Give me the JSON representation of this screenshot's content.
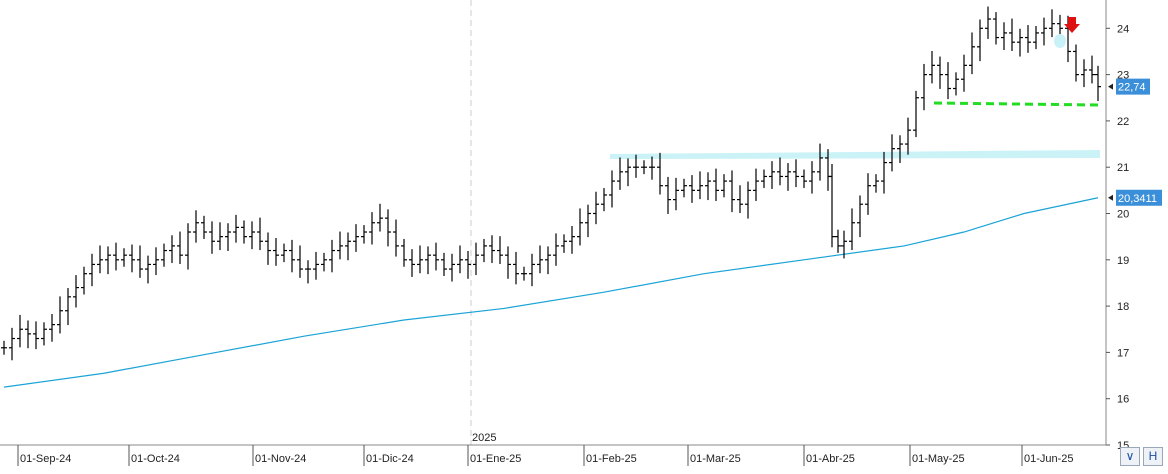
{
  "chart_data": {
    "type": "bar",
    "subtype": "ohlc",
    "grid": "vertical dashed",
    "y_axis_side": "right",
    "ylim": [
      15,
      24.5
    ],
    "yticks": [
      15,
      16,
      17,
      18,
      19,
      20,
      21,
      22,
      23,
      24
    ],
    "xlabels": [
      "01-Sep-24",
      "01-Oct-24",
      "01-Nov-24",
      "01-Dic-24",
      "01-Ene-25",
      "01-Feb-25",
      "01-Mar-25",
      "01-Abr-25",
      "01-May-25",
      "01-Jun-25"
    ],
    "year_marker": "2025",
    "last_price_label": "22,74",
    "moving_average_label": "20,3411",
    "colors": {
      "bars": "#000000",
      "moving_average": "#1aa3d6",
      "resistance_band": "#c8f2f7",
      "support_line": "#22dd22",
      "arrow": "#dd1111",
      "price_label_bg": "#3b8fd9"
    },
    "price_series": [
      {
        "x": 0,
        "close": 17.1
      },
      {
        "x": 8,
        "close": 17.3
      },
      {
        "x": 16,
        "close": 17.5
      },
      {
        "x": 24,
        "close": 17.4
      },
      {
        "x": 32,
        "close": 17.3
      },
      {
        "x": 40,
        "close": 17.5
      },
      {
        "x": 48,
        "close": 17.6
      },
      {
        "x": 56,
        "close": 17.9
      },
      {
        "x": 64,
        "close": 18.2
      },
      {
        "x": 72,
        "close": 18.4
      },
      {
        "x": 80,
        "close": 18.7
      },
      {
        "x": 88,
        "close": 18.9
      },
      {
        "x": 96,
        "close": 19.0
      },
      {
        "x": 104,
        "close": 19.1
      },
      {
        "x": 112,
        "close": 19.0
      },
      {
        "x": 120,
        "close": 19.1
      },
      {
        "x": 128,
        "close": 19.0
      },
      {
        "x": 136,
        "close": 18.8
      },
      {
        "x": 144,
        "close": 18.9
      },
      {
        "x": 152,
        "close": 19.0
      },
      {
        "x": 160,
        "close": 19.2
      },
      {
        "x": 168,
        "close": 19.3
      },
      {
        "x": 176,
        "close": 19.1
      },
      {
        "x": 184,
        "close": 19.6
      },
      {
        "x": 192,
        "close": 19.8
      },
      {
        "x": 200,
        "close": 19.6
      },
      {
        "x": 208,
        "close": 19.4
      },
      {
        "x": 216,
        "close": 19.5
      },
      {
        "x": 224,
        "close": 19.6
      },
      {
        "x": 232,
        "close": 19.7
      },
      {
        "x": 240,
        "close": 19.5
      },
      {
        "x": 248,
        "close": 19.6
      },
      {
        "x": 256,
        "close": 19.4
      },
      {
        "x": 264,
        "close": 19.2
      },
      {
        "x": 272,
        "close": 19.1
      },
      {
        "x": 280,
        "close": 19.2
      },
      {
        "x": 288,
        "close": 19.0
      },
      {
        "x": 296,
        "close": 18.8
      },
      {
        "x": 304,
        "close": 18.8
      },
      {
        "x": 312,
        "close": 18.9
      },
      {
        "x": 320,
        "close": 19.0
      },
      {
        "x": 328,
        "close": 19.2
      },
      {
        "x": 336,
        "close": 19.3
      },
      {
        "x": 344,
        "close": 19.4
      },
      {
        "x": 352,
        "close": 19.5
      },
      {
        "x": 360,
        "close": 19.6
      },
      {
        "x": 368,
        "close": 19.8
      },
      {
        "x": 376,
        "close": 19.9
      },
      {
        "x": 384,
        "close": 19.6
      },
      {
        "x": 392,
        "close": 19.3
      },
      {
        "x": 400,
        "close": 19.0
      },
      {
        "x": 408,
        "close": 18.9
      },
      {
        "x": 416,
        "close": 19.0
      },
      {
        "x": 424,
        "close": 19.1
      },
      {
        "x": 432,
        "close": 19.0
      },
      {
        "x": 440,
        "close": 18.8
      },
      {
        "x": 448,
        "close": 18.9
      },
      {
        "x": 456,
        "close": 19.0
      },
      {
        "x": 464,
        "close": 18.9
      },
      {
        "x": 472,
        "close": 19.1
      },
      {
        "x": 480,
        "close": 19.3
      },
      {
        "x": 488,
        "close": 19.2
      },
      {
        "x": 496,
        "close": 19.1
      },
      {
        "x": 504,
        "close": 18.9
      },
      {
        "x": 512,
        "close": 18.7
      },
      {
        "x": 520,
        "close": 18.7
      },
      {
        "x": 528,
        "close": 18.9
      },
      {
        "x": 536,
        "close": 19.0
      },
      {
        "x": 544,
        "close": 19.1
      },
      {
        "x": 552,
        "close": 19.3
      },
      {
        "x": 560,
        "close": 19.4
      },
      {
        "x": 568,
        "close": 19.5
      },
      {
        "x": 576,
        "close": 19.8
      },
      {
        "x": 584,
        "close": 20.0
      },
      {
        "x": 592,
        "close": 20.2
      },
      {
        "x": 600,
        "close": 20.4
      },
      {
        "x": 608,
        "close": 20.7
      },
      {
        "x": 616,
        "close": 20.9
      },
      {
        "x": 624,
        "close": 21.0
      },
      {
        "x": 632,
        "close": 21.0
      },
      {
        "x": 640,
        "close": 21.0
      },
      {
        "x": 648,
        "close": 21.0
      },
      {
        "x": 656,
        "close": 20.6
      },
      {
        "x": 664,
        "close": 20.3
      },
      {
        "x": 672,
        "close": 20.5
      },
      {
        "x": 680,
        "close": 20.6
      },
      {
        "x": 688,
        "close": 20.5
      },
      {
        "x": 696,
        "close": 20.6
      },
      {
        "x": 704,
        "close": 20.7
      },
      {
        "x": 712,
        "close": 20.5
      },
      {
        "x": 720,
        "close": 20.7
      },
      {
        "x": 728,
        "close": 20.3
      },
      {
        "x": 736,
        "close": 20.2
      },
      {
        "x": 744,
        "close": 20.5
      },
      {
        "x": 752,
        "close": 20.7
      },
      {
        "x": 760,
        "close": 20.8
      },
      {
        "x": 768,
        "close": 20.9
      },
      {
        "x": 776,
        "close": 20.8
      },
      {
        "x": 784,
        "close": 20.9
      },
      {
        "x": 792,
        "close": 20.8
      },
      {
        "x": 800,
        "close": 20.7
      },
      {
        "x": 808,
        "close": 20.9
      },
      {
        "x": 816,
        "close": 21.2
      },
      {
        "x": 824,
        "close": 20.8
      },
      {
        "x": 828,
        "close": 19.5
      },
      {
        "x": 834,
        "close": 19.3
      },
      {
        "x": 840,
        "close": 19.4
      },
      {
        "x": 848,
        "close": 19.8
      },
      {
        "x": 856,
        "close": 20.2
      },
      {
        "x": 864,
        "close": 20.6
      },
      {
        "x": 872,
        "close": 20.7
      },
      {
        "x": 880,
        "close": 21.1
      },
      {
        "x": 888,
        "close": 21.4
      },
      {
        "x": 896,
        "close": 21.5
      },
      {
        "x": 904,
        "close": 21.8
      },
      {
        "x": 912,
        "close": 22.5
      },
      {
        "x": 920,
        "close": 23.0
      },
      {
        "x": 928,
        "close": 23.2
      },
      {
        "x": 936,
        "close": 23.0
      },
      {
        "x": 944,
        "close": 22.7
      },
      {
        "x": 952,
        "close": 22.9
      },
      {
        "x": 960,
        "close": 23.2
      },
      {
        "x": 968,
        "close": 23.6
      },
      {
        "x": 976,
        "close": 24.0
      },
      {
        "x": 984,
        "close": 24.2
      },
      {
        "x": 992,
        "close": 23.8
      },
      {
        "x": 1000,
        "close": 23.9
      },
      {
        "x": 1008,
        "close": 23.7
      },
      {
        "x": 1016,
        "close": 23.8
      },
      {
        "x": 1024,
        "close": 23.7
      },
      {
        "x": 1032,
        "close": 23.9
      },
      {
        "x": 1040,
        "close": 24.0
      },
      {
        "x": 1048,
        "close": 24.1
      },
      {
        "x": 1056,
        "close": 24.0
      },
      {
        "x": 1064,
        "close": 23.5
      },
      {
        "x": 1072,
        "close": 23.0
      },
      {
        "x": 1080,
        "close": 23.1
      },
      {
        "x": 1088,
        "close": 23.0
      },
      {
        "x": 1094,
        "close": 22.74
      }
    ],
    "moving_average": [
      {
        "x": 0,
        "value": 16.25
      },
      {
        "x": 100,
        "value": 16.55
      },
      {
        "x": 200,
        "value": 16.95
      },
      {
        "x": 300,
        "value": 17.35
      },
      {
        "x": 400,
        "value": 17.7
      },
      {
        "x": 500,
        "value": 17.95
      },
      {
        "x": 600,
        "value": 18.3
      },
      {
        "x": 700,
        "value": 18.7
      },
      {
        "x": 800,
        "value": 19.0
      },
      {
        "x": 900,
        "value": 19.3
      },
      {
        "x": 960,
        "value": 19.6
      },
      {
        "x": 1020,
        "value": 20.0
      },
      {
        "x": 1094,
        "value": 20.34
      }
    ]
  }
}
